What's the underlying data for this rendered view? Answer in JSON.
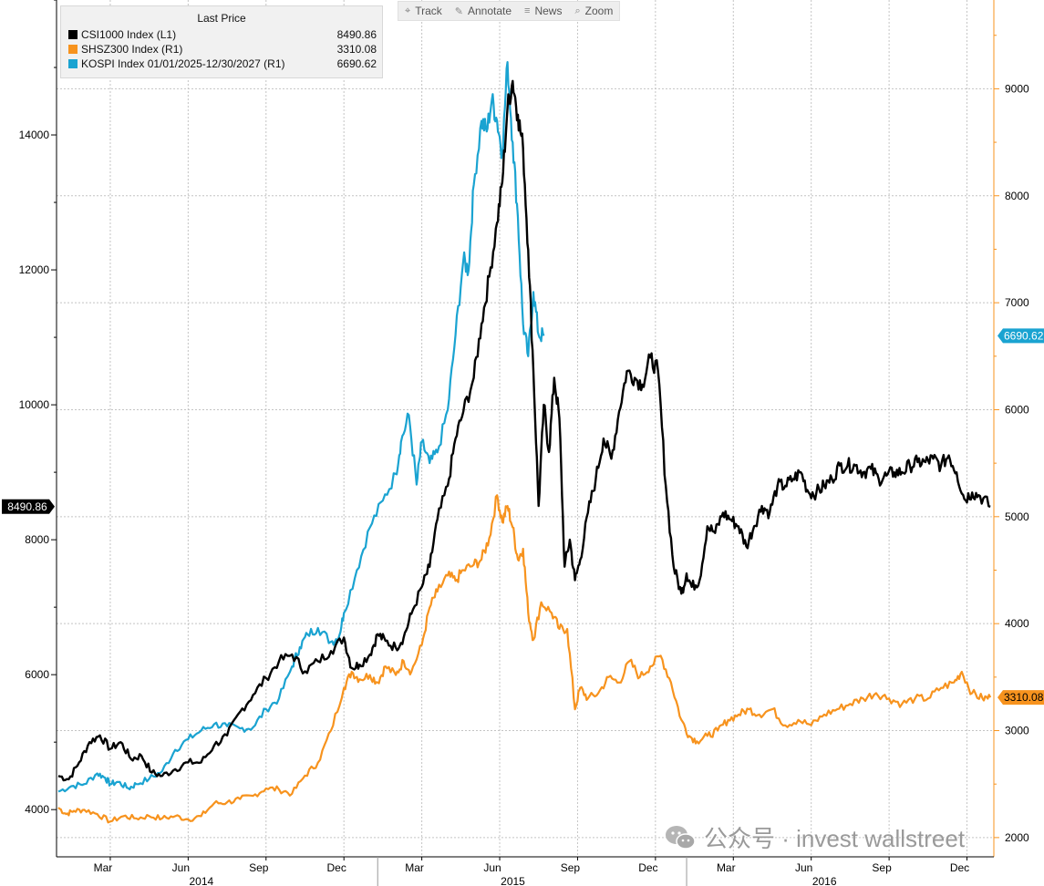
{
  "toolbar": {
    "items": [
      {
        "label": "Track",
        "icon": "crosshair-icon"
      },
      {
        "label": "Annotate",
        "icon": "pen-icon"
      },
      {
        "label": "News",
        "icon": "news-icon"
      },
      {
        "label": "Zoom",
        "icon": "magnifier-icon"
      }
    ]
  },
  "legend": {
    "title": "Last Price",
    "entries": [
      {
        "name": "CSI1000 Index  (L1)",
        "value": "8490.86",
        "color": "#000000"
      },
      {
        "name": "SHSZ300 Index  (R1)",
        "value": "3310.08",
        "color": "#f7931e"
      },
      {
        "name": "KOSPI Index 01/01/2025-12/30/2027  (R1)",
        "value": "6690.62",
        "color": "#1aa3d1"
      }
    ]
  },
  "watermark": {
    "text": "公众号 · invest wallstreet"
  },
  "chart_data": {
    "type": "line",
    "left_axis": {
      "ylim": [
        3300,
        16000
      ],
      "ticks": [
        4000,
        6000,
        8000,
        10000,
        12000,
        14000
      ],
      "minor_step": 1000
    },
    "right_axis": {
      "ylim": [
        1820,
        9830
      ],
      "ticks": [
        2000,
        3000,
        4000,
        5000,
        6000,
        7000,
        8000,
        9000
      ],
      "minor_step": 500
    },
    "x_axis": {
      "range": [
        0,
        36
      ],
      "month_ticks": [
        {
          "x": 2,
          "label": "Mar"
        },
        {
          "x": 5,
          "label": "Jun"
        },
        {
          "x": 8,
          "label": "Sep"
        },
        {
          "x": 11,
          "label": "Dec"
        },
        {
          "x": 14,
          "label": "Mar"
        },
        {
          "x": 17,
          "label": "Jun"
        },
        {
          "x": 20,
          "label": "Sep"
        },
        {
          "x": 23,
          "label": "Dec"
        },
        {
          "x": 26,
          "label": "Mar"
        },
        {
          "x": 29,
          "label": "Jun"
        },
        {
          "x": 32,
          "label": "Sep"
        },
        {
          "x": 35,
          "label": "Dec"
        }
      ],
      "year_labels": [
        {
          "label": "2014",
          "x": 6
        },
        {
          "label": "2015",
          "x": 18
        },
        {
          "label": "2016",
          "x": 30
        }
      ],
      "year_dividers": [
        12.3,
        24.2
      ]
    },
    "grid": true,
    "last_value_tags": [
      {
        "series": "CSI1000",
        "axis": "left",
        "value": 8490.86,
        "label": "8490.86",
        "bg": "#000000",
        "fg": "#ffffff"
      },
      {
        "series": "KOSPI",
        "axis": "right",
        "value": 6690.62,
        "label": "6690.62",
        "bg": "#1aa3d1",
        "fg": "#ffffff"
      },
      {
        "series": "SHSZ300",
        "axis": "right",
        "value": 3310.08,
        "label": "3310.08",
        "bg": "#f7931e",
        "fg": "#000000"
      }
    ],
    "series": [
      {
        "name": "KOSPI Index 01/01/2025-12/30/2027",
        "axis": "right",
        "color": "#1aa3d1",
        "x": [
          0,
          0.5,
          1,
          1.5,
          1.8,
          2,
          2.3,
          2.7,
          3,
          3.5,
          4,
          4.5,
          5,
          5.5,
          6,
          6.5,
          7,
          7.5,
          8,
          8.5,
          9,
          9.3,
          9.6,
          10,
          10.5,
          10.8,
          11,
          11.5,
          12,
          12.5,
          13,
          13.2,
          13.5,
          13.8,
          14,
          14.3,
          14.6,
          15,
          15.3,
          15.6,
          15.8,
          16,
          16.3,
          16.5,
          16.7,
          16.9,
          17.1,
          17.3,
          17.5,
          17.7,
          17.9,
          18.1,
          18.3,
          18.5,
          18.7
        ],
        "y": [
          2430,
          2480,
          2500,
          2600,
          2560,
          2500,
          2520,
          2460,
          2500,
          2550,
          2620,
          2820,
          2920,
          3000,
          3060,
          3040,
          3020,
          3030,
          3200,
          3300,
          3600,
          3780,
          3900,
          3960,
          3830,
          3870,
          4100,
          4500,
          4900,
          5150,
          5400,
          5700,
          5950,
          5300,
          5700,
          5500,
          5600,
          6000,
          6700,
          7400,
          7300,
          8100,
          8700,
          8600,
          8900,
          8700,
          8400,
          9250,
          8500,
          7800,
          6800,
          6500,
          7100,
          6700,
          6690.62
        ]
      },
      {
        "name": "SHSZ300 Index",
        "axis": "right",
        "color": "#f7931e",
        "x": [
          0,
          0.3,
          0.6,
          1,
          1.5,
          2,
          2.5,
          3,
          3.5,
          4,
          4.5,
          5,
          5.5,
          6,
          6.5,
          7,
          7.5,
          8,
          8.5,
          9,
          9.5,
          10,
          10.5,
          11,
          11.3,
          11.6,
          12,
          12.3,
          12.6,
          13,
          13.3,
          13.6,
          14,
          14.3,
          14.6,
          15,
          15.3,
          15.6,
          16,
          16.3,
          16.6,
          16.9,
          17.1,
          17.3,
          17.5,
          17.7,
          17.9,
          18.1,
          18.3,
          18.6,
          19,
          19.3,
          19.6,
          19.9,
          20.1,
          20.4,
          20.8,
          21.2,
          21.6,
          22,
          22.4,
          22.8,
          23.2,
          23.6,
          24,
          24.3,
          24.6,
          25,
          25.4,
          25.8,
          26.2,
          26.6,
          27,
          27.5,
          28,
          28.5,
          29,
          29.5,
          30,
          30.5,
          31,
          31.5,
          32,
          32.5,
          33,
          33.5,
          34,
          34.5,
          34.8,
          35.2,
          35.6,
          35.9
        ],
        "y": [
          2280,
          2220,
          2250,
          2260,
          2220,
          2150,
          2200,
          2180,
          2200,
          2180,
          2200,
          2170,
          2200,
          2320,
          2330,
          2360,
          2390,
          2460,
          2450,
          2410,
          2580,
          2700,
          3000,
          3400,
          3550,
          3480,
          3520,
          3450,
          3600,
          3520,
          3650,
          3550,
          3800,
          4150,
          4300,
          4450,
          4400,
          4500,
          4550,
          4600,
          4800,
          5200,
          4950,
          5100,
          4900,
          4600,
          4700,
          4100,
          3850,
          4200,
          4100,
          3950,
          3950,
          3200,
          3400,
          3300,
          3350,
          3500,
          3450,
          3650,
          3500,
          3600,
          3700,
          3450,
          3100,
          2950,
          2900,
          2950,
          3000,
          3100,
          3150,
          3200,
          3150,
          3200,
          3050,
          3100,
          3050,
          3150,
          3200,
          3250,
          3300,
          3350,
          3300,
          3250,
          3300,
          3300,
          3400,
          3450,
          3550,
          3350,
          3300,
          3310.08
        ]
      },
      {
        "name": "CSI1000 Index",
        "axis": "left",
        "color": "#000000",
        "x": [
          0,
          0.4,
          0.8,
          1.2,
          1.6,
          2,
          2.4,
          2.8,
          3.2,
          3.6,
          4,
          4.5,
          5,
          5.5,
          6,
          6.5,
          7,
          7.5,
          8,
          8.5,
          9,
          9.5,
          10,
          10.5,
          11,
          11.3,
          11.6,
          12,
          12.3,
          12.6,
          13,
          13.3,
          13.6,
          14,
          14.3,
          14.6,
          15,
          15.3,
          15.6,
          16,
          16.3,
          16.6,
          16.9,
          17.1,
          17.3,
          17.5,
          17.7,
          17.9,
          18.1,
          18.3,
          18.5,
          18.7,
          18.9,
          19.1,
          19.3,
          19.5,
          19.7,
          19.9,
          20.1,
          20.4,
          20.7,
          21,
          21.3,
          21.6,
          21.9,
          22.2,
          22.5,
          22.8,
          23.1,
          23.4,
          23.7,
          24,
          24.2,
          24.4,
          24.7,
          25,
          25.3,
          25.6,
          25.9,
          26.2,
          26.5,
          26.8,
          27.1,
          27.4,
          27.7,
          28,
          28.3,
          28.6,
          28.9,
          29.2,
          29.5,
          29.8,
          30.1,
          30.4,
          30.7,
          31,
          31.3,
          31.6,
          31.9,
          32.2,
          32.5,
          32.8,
          33.1,
          33.4,
          33.7,
          34,
          34.3,
          34.6,
          34.9,
          35.2,
          35.5,
          35.9
        ],
        "y": [
          4500,
          4450,
          4700,
          5000,
          5100,
          4900,
          5000,
          4750,
          4800,
          4550,
          4500,
          4600,
          4700,
          4700,
          4950,
          5100,
          5450,
          5700,
          5950,
          6200,
          6300,
          6050,
          6200,
          6350,
          6550,
          6100,
          6150,
          6300,
          6600,
          6500,
          6400,
          6550,
          6900,
          7300,
          7600,
          8300,
          8800,
          9500,
          9900,
          10400,
          11200,
          11900,
          12700,
          13300,
          14400,
          14800,
          14300,
          13800,
          12300,
          10500,
          8500,
          10000,
          9300,
          10400,
          9800,
          7600,
          8000,
          7400,
          7700,
          8400,
          8900,
          9500,
          9200,
          9900,
          10500,
          10400,
          10300,
          10700,
          10500,
          8800,
          7600,
          7200,
          7500,
          7300,
          7400,
          8200,
          8100,
          8400,
          8300,
          8200,
          7900,
          8200,
          8500,
          8400,
          8800,
          8800,
          8900,
          9000,
          8700,
          8700,
          8800,
          8900,
          9100,
          9100,
          9100,
          9000,
          9050,
          8900,
          8950,
          9000,
          9000,
          9100,
          9150,
          9150,
          9200,
          9100,
          9250,
          9000,
          8600,
          8700,
          8650,
          8490.86
        ]
      }
    ]
  }
}
